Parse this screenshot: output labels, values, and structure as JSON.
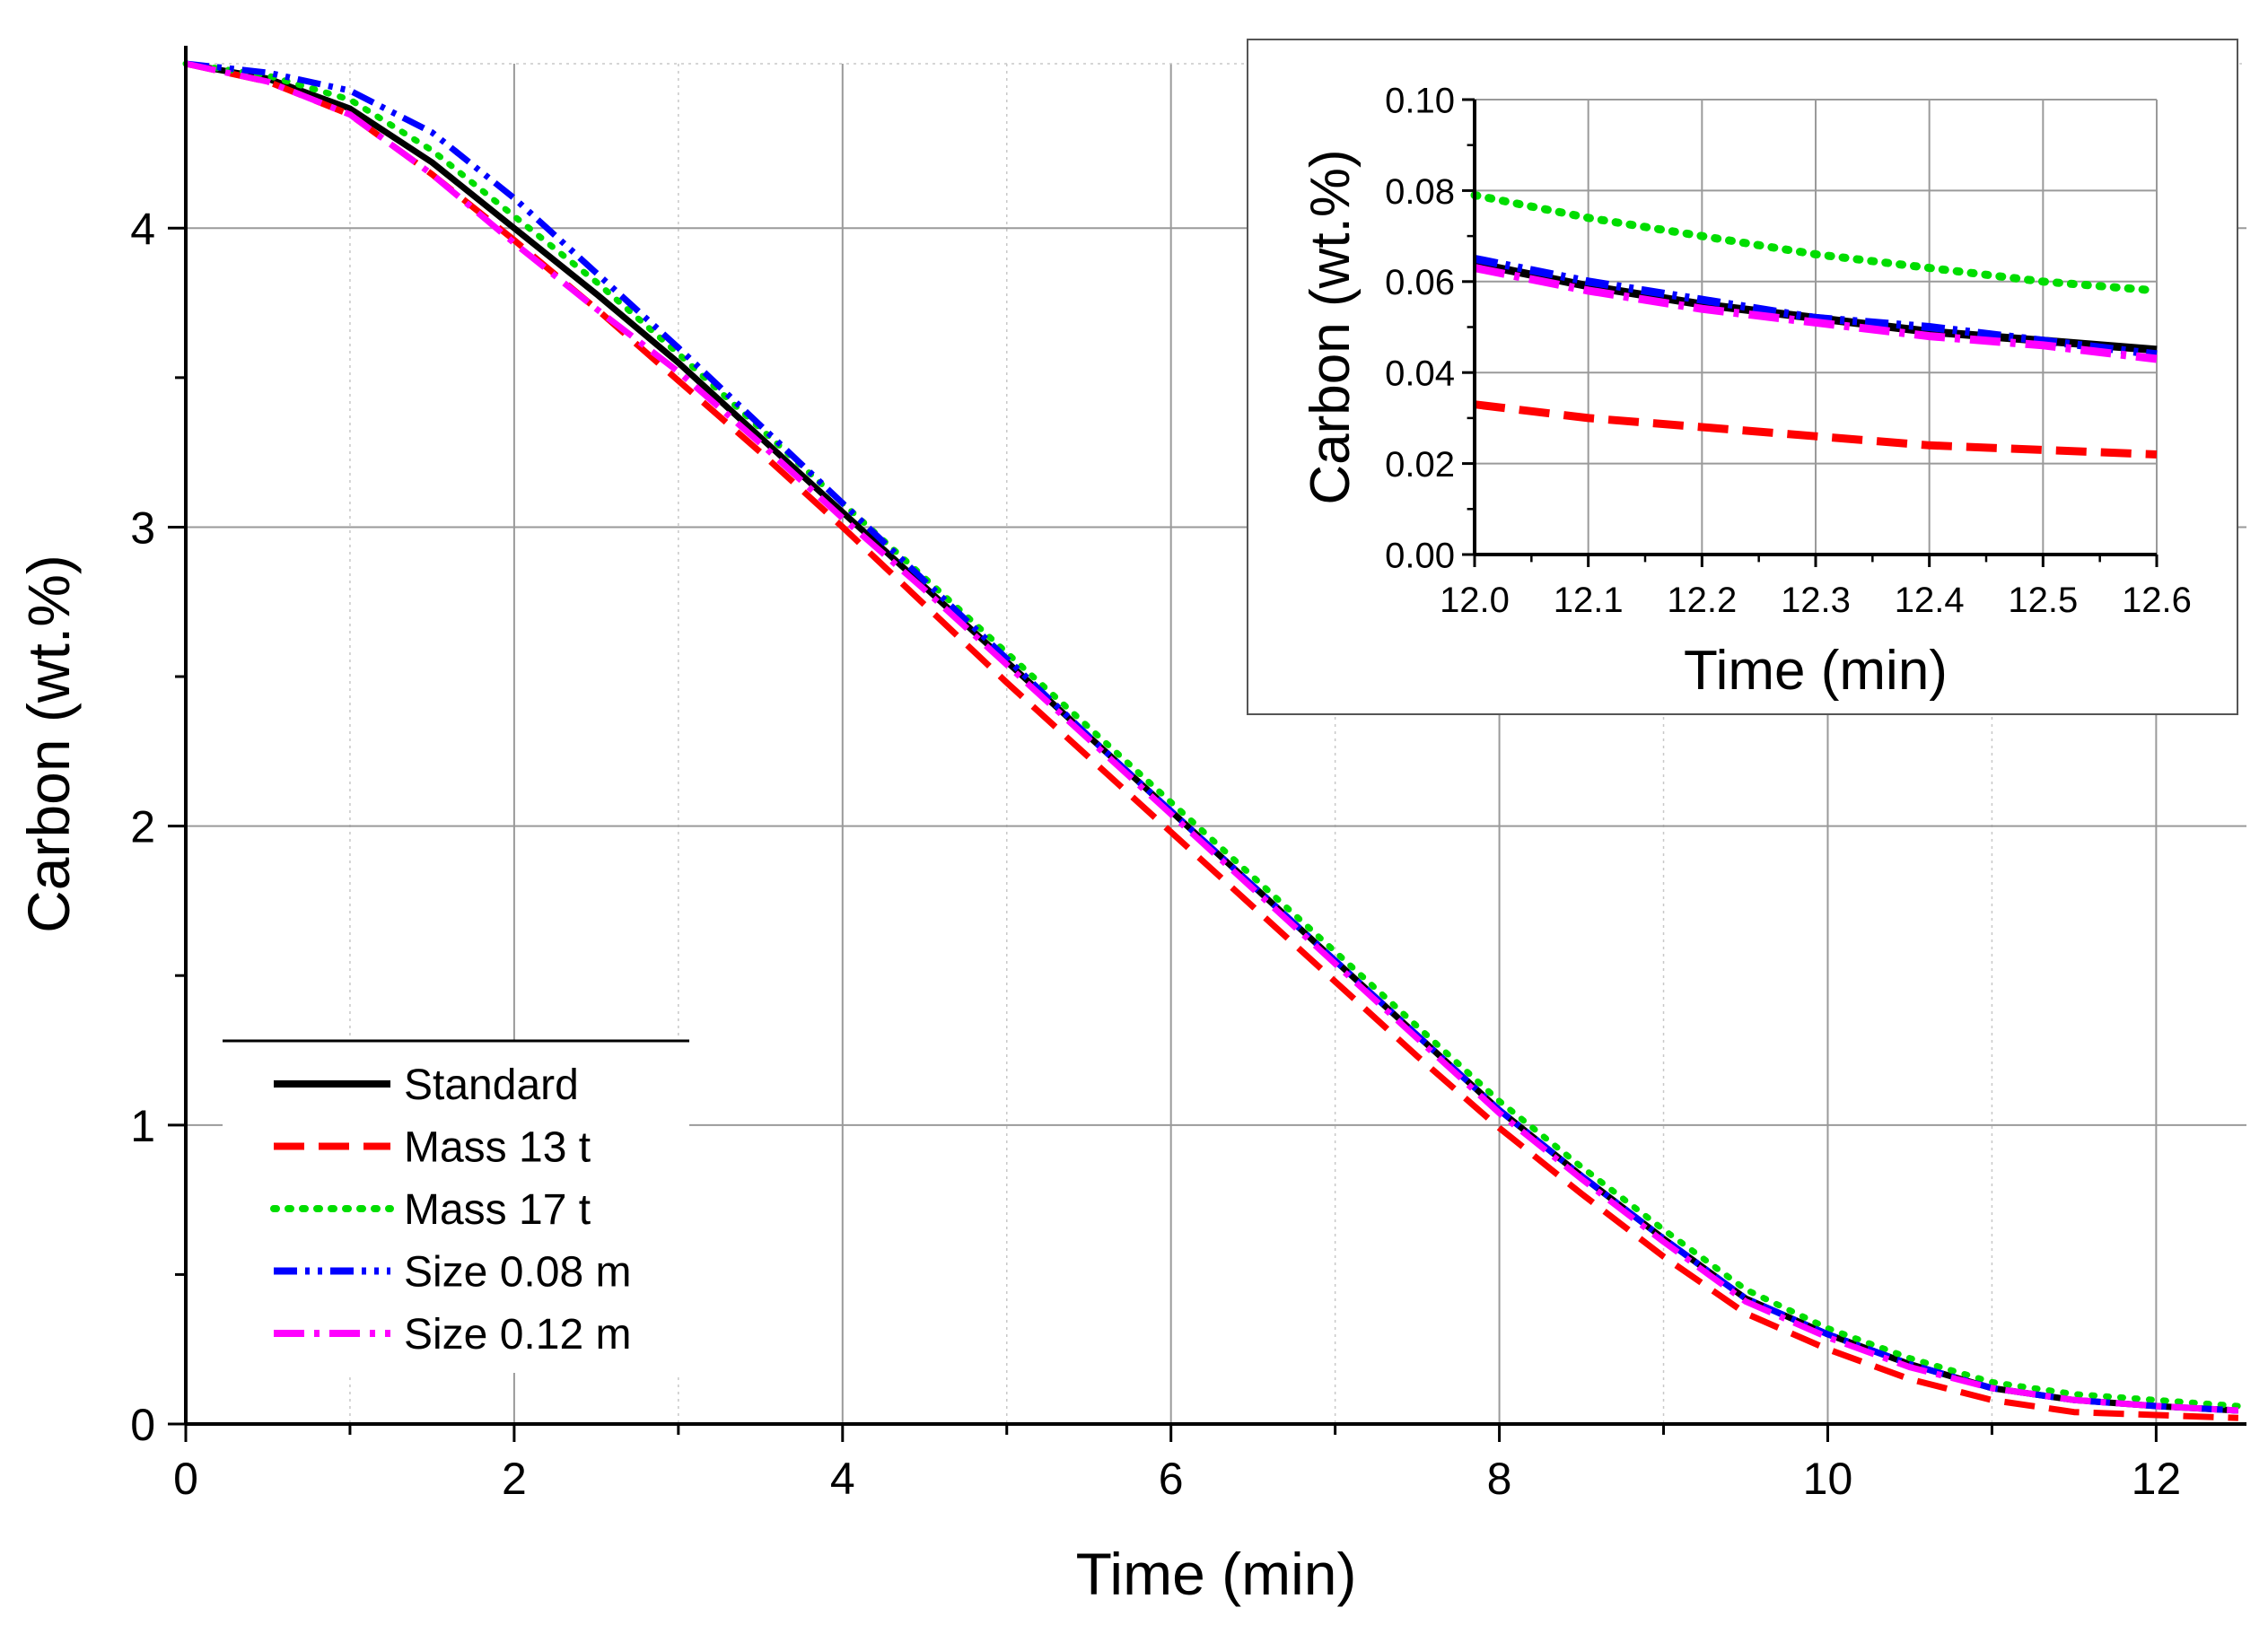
{
  "chart_data": [
    {
      "id": "main",
      "type": "line",
      "title": "",
      "xlabel": "Time (min)",
      "ylabel": "Carbon (wt.%)",
      "xlim": [
        0,
        12.55
      ],
      "ylim": [
        0,
        4.55
      ],
      "xticks": [
        0,
        2,
        4,
        6,
        8,
        10,
        12
      ],
      "xtick_labels": [
        "0",
        "2",
        "4",
        "6",
        "8",
        "10",
        "12"
      ],
      "xminor": [
        1,
        3,
        5,
        7,
        9,
        11
      ],
      "yticks": [
        0,
        1,
        2,
        3,
        4
      ],
      "ytick_labels": [
        "0",
        "1",
        "2",
        "3",
        "4"
      ],
      "yminor": [
        0.5,
        1.5,
        2.5,
        3.5
      ],
      "grid": true,
      "legend_position": "bottom-left",
      "legend": [
        "Standard",
        "Mass 13 t",
        "Mass 17 t",
        "Size 0.08 m",
        "Size 0.12 m"
      ],
      "series": [
        {
          "name": "Standard",
          "color": "#000000",
          "style": "solid",
          "x": [
            0,
            0.5,
            1,
            1.5,
            2,
            2.5,
            3,
            3.5,
            4,
            4.5,
            5,
            5.5,
            6,
            6.5,
            7,
            7.5,
            8,
            8.5,
            9,
            9.5,
            10,
            10.5,
            11,
            11.5,
            12,
            12.5
          ],
          "y": [
            4.55,
            4.5,
            4.4,
            4.22,
            4.0,
            3.78,
            3.55,
            3.3,
            3.05,
            2.8,
            2.55,
            2.3,
            2.05,
            1.8,
            1.55,
            1.3,
            1.05,
            0.83,
            0.62,
            0.42,
            0.3,
            0.2,
            0.12,
            0.08,
            0.06,
            0.045
          ]
        },
        {
          "name": "Mass 13 t",
          "color": "#ff0000",
          "style": "dash",
          "x": [
            0,
            0.5,
            1,
            1.5,
            2,
            2.5,
            3,
            3.5,
            4,
            4.5,
            5,
            5.5,
            6,
            6.5,
            7,
            7.5,
            8,
            8.5,
            9,
            9.5,
            10,
            10.5,
            11,
            11.5,
            12,
            12.5
          ],
          "y": [
            4.55,
            4.49,
            4.38,
            4.18,
            3.96,
            3.73,
            3.49,
            3.25,
            3.0,
            2.74,
            2.48,
            2.23,
            1.98,
            1.73,
            1.48,
            1.23,
            0.99,
            0.77,
            0.56,
            0.37,
            0.25,
            0.15,
            0.08,
            0.04,
            0.03,
            0.02
          ]
        },
        {
          "name": "Mass 17 t",
          "color": "#00dd00",
          "style": "dot",
          "x": [
            0,
            0.5,
            1,
            1.5,
            2,
            2.5,
            3,
            3.5,
            4,
            4.5,
            5,
            5.5,
            6,
            6.5,
            7,
            7.5,
            8,
            8.5,
            9,
            9.5,
            10,
            10.5,
            11,
            11.5,
            12,
            12.5
          ],
          "y": [
            4.55,
            4.51,
            4.43,
            4.26,
            4.04,
            3.82,
            3.58,
            3.33,
            3.08,
            2.83,
            2.58,
            2.33,
            2.08,
            1.83,
            1.58,
            1.33,
            1.08,
            0.86,
            0.65,
            0.45,
            0.32,
            0.22,
            0.14,
            0.1,
            0.08,
            0.06
          ]
        },
        {
          "name": "Size 0.08 m",
          "color": "#0000ff",
          "style": "dashdotdot",
          "x": [
            0,
            0.5,
            1,
            1.5,
            2,
            2.5,
            3,
            3.5,
            4,
            4.5,
            5,
            5.5,
            6,
            6.5,
            7,
            7.5,
            8,
            8.5,
            9,
            9.5,
            10,
            10.5,
            11,
            11.5,
            12,
            12.5
          ],
          "y": [
            4.55,
            4.52,
            4.46,
            4.32,
            4.1,
            3.85,
            3.6,
            3.34,
            3.08,
            2.82,
            2.56,
            2.3,
            2.05,
            1.8,
            1.55,
            1.3,
            1.05,
            0.83,
            0.62,
            0.42,
            0.3,
            0.2,
            0.12,
            0.08,
            0.06,
            0.045
          ]
        },
        {
          "name": "Size 0.12 m",
          "color": "#ff00ff",
          "style": "dashdot",
          "x": [
            0,
            0.5,
            1,
            1.5,
            2,
            2.5,
            3,
            3.5,
            4,
            4.5,
            5,
            5.5,
            6,
            6.5,
            7,
            7.5,
            8,
            8.5,
            9,
            9.5,
            10,
            10.5,
            11,
            11.5,
            12,
            12.5
          ],
          "y": [
            4.55,
            4.49,
            4.38,
            4.18,
            3.95,
            3.73,
            3.52,
            3.28,
            3.03,
            2.79,
            2.54,
            2.29,
            2.04,
            1.79,
            1.54,
            1.29,
            1.04,
            0.82,
            0.61,
            0.41,
            0.29,
            0.19,
            0.12,
            0.08,
            0.06,
            0.045
          ]
        }
      ]
    },
    {
      "id": "inset",
      "type": "line",
      "title": "",
      "xlabel": "Time (min)",
      "ylabel": "Carbon (wt.%)",
      "xlim": [
        12.0,
        12.6
      ],
      "ylim": [
        0.0,
        0.1
      ],
      "xticks": [
        12.0,
        12.1,
        12.2,
        12.3,
        12.4,
        12.5,
        12.6
      ],
      "xtick_labels": [
        "12.0",
        "12.1",
        "12.2",
        "12.3",
        "12.4",
        "12.5",
        "12.6"
      ],
      "yticks": [
        0.0,
        0.02,
        0.04,
        0.06,
        0.08,
        0.1
      ],
      "ytick_labels": [
        "0.00",
        "0.02",
        "0.04",
        "0.06",
        "0.08",
        "0.10"
      ],
      "grid": true,
      "series": [
        {
          "name": "Standard",
          "color": "#000000",
          "style": "solid",
          "x": [
            12.0,
            12.1,
            12.2,
            12.3,
            12.4,
            12.5,
            12.6
          ],
          "y": [
            0.064,
            0.059,
            0.055,
            0.052,
            0.049,
            0.047,
            0.045
          ]
        },
        {
          "name": "Mass 13 t",
          "color": "#ff0000",
          "style": "dash",
          "x": [
            12.0,
            12.1,
            12.2,
            12.3,
            12.4,
            12.5,
            12.6
          ],
          "y": [
            0.033,
            0.03,
            0.028,
            0.026,
            0.024,
            0.023,
            0.022
          ]
        },
        {
          "name": "Mass 17 t",
          "color": "#00dd00",
          "style": "dot",
          "x": [
            12.0,
            12.1,
            12.2,
            12.3,
            12.4,
            12.5,
            12.6
          ],
          "y": [
            0.079,
            0.074,
            0.07,
            0.066,
            0.063,
            0.06,
            0.058
          ]
        },
        {
          "name": "Size 0.08 m",
          "color": "#0000ff",
          "style": "dashdotdot",
          "x": [
            12.0,
            12.1,
            12.2,
            12.3,
            12.4,
            12.5,
            12.6
          ],
          "y": [
            0.065,
            0.06,
            0.056,
            0.052,
            0.05,
            0.047,
            0.044
          ]
        },
        {
          "name": "Size 0.12 m",
          "color": "#ff00ff",
          "style": "dashdot",
          "x": [
            12.0,
            12.1,
            12.2,
            12.3,
            12.4,
            12.5,
            12.6
          ],
          "y": [
            0.063,
            0.058,
            0.054,
            0.051,
            0.048,
            0.046,
            0.043
          ]
        }
      ]
    }
  ]
}
